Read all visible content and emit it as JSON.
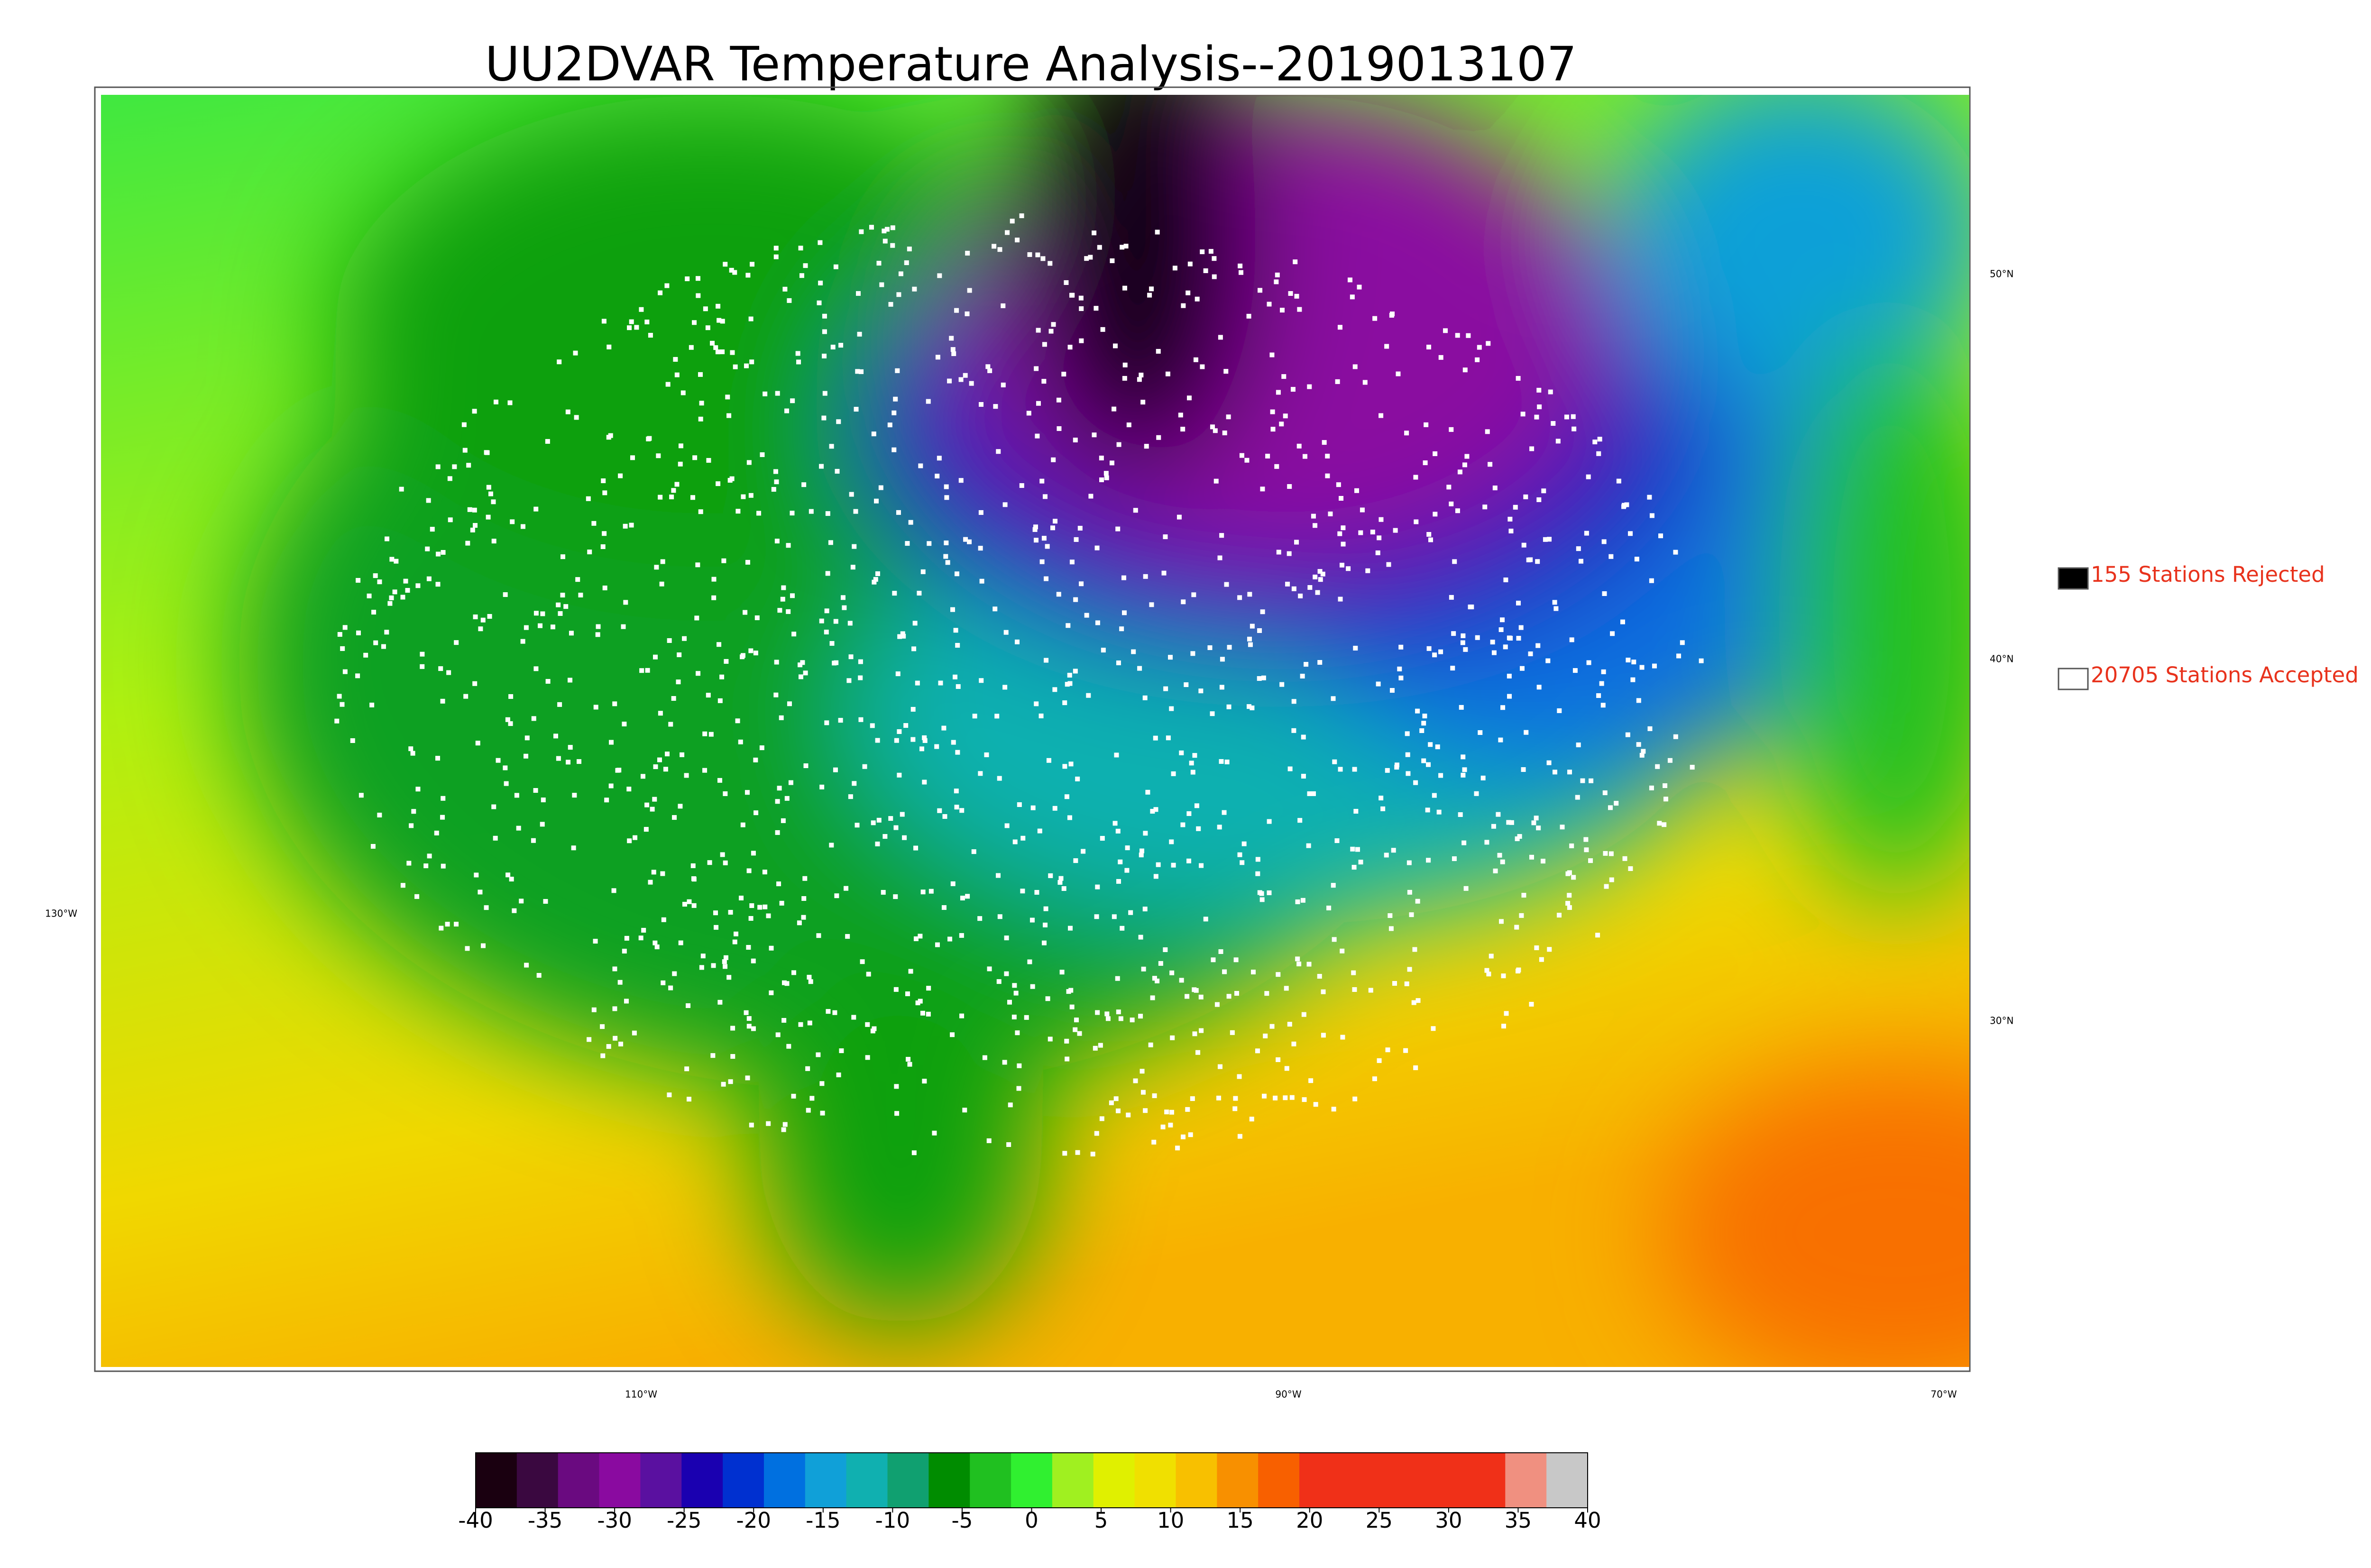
{
  "title": "UU2DVAR Temperature Analysis--2019013107",
  "legend": [
    {
      "label": "155 Stations Rejected",
      "color": "#000000"
    },
    {
      "label": "20705 Stations Accepted",
      "color": "#ffffff"
    }
  ],
  "latitude_labels": [
    "50°N",
    "40°N",
    "30°N"
  ],
  "longitude_labels": [
    "130°W",
    "110°W",
    "90°W",
    "70°W"
  ],
  "colorbar": {
    "range": [
      -40,
      40
    ],
    "ticks": [
      -40,
      -35,
      -30,
      -25,
      -20,
      -15,
      -10,
      -5,
      0,
      5,
      10,
      15,
      20,
      25,
      30,
      35,
      40
    ],
    "colors": [
      "#1a0010",
      "#3a0840",
      "#6a0a80",
      "#8a0aa0",
      "#5a10a0",
      "#1a00b0",
      "#0030d0",
      "#0070e0",
      "#10a0d8",
      "#10b0b0",
      "#10a070",
      "#008c00",
      "#20c020",
      "#30f030",
      "#a0f020",
      "#e0f000",
      "#f0e000",
      "#f8c000",
      "#f89000",
      "#f86000",
      "#f03018",
      "#f03018",
      "#f03018",
      "#f03018",
      "#f03018",
      "#f09080",
      "#c8c8c8"
    ]
  }
}
